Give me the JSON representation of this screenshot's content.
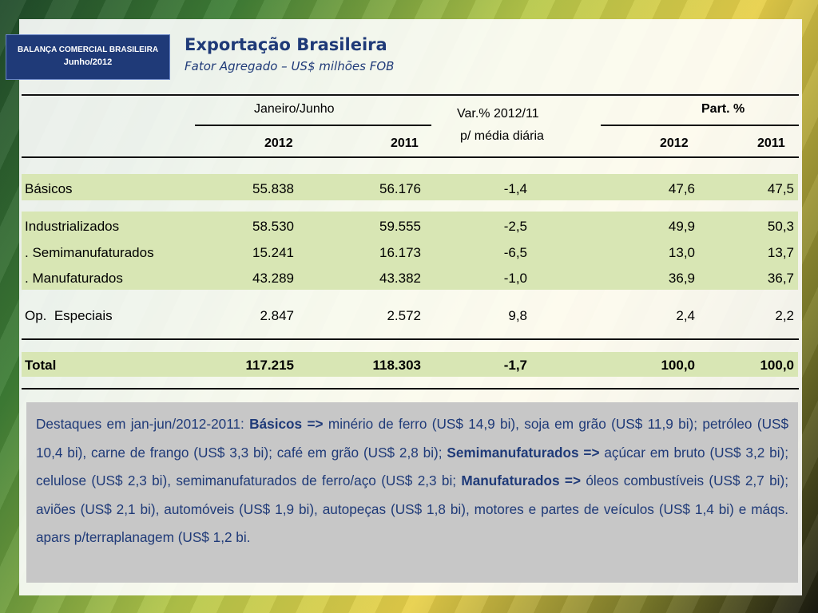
{
  "badge": {
    "line1": "BALANÇA COMERCIAL BRASILEIRA",
    "line2": "Junho/2012"
  },
  "title": "Exportação Brasileira",
  "subtitle": "Fator Agregado – US$ milhões FOB",
  "table": {
    "group_period": "Janeiro/Junho",
    "group_var_line1": "Var.% 2012/11",
    "group_var_line2": "p/ média diária",
    "group_part": "Part. %",
    "year_2012": "2012",
    "year_2011": "2011",
    "part_2012": "2012",
    "part_2011": "2011",
    "rows": [
      {
        "label": "Básicos",
        "v2012": "55.838",
        "v2011": "56.176",
        "var": "-1,4",
        "p2012": "47,6",
        "p2011": "47,5"
      },
      {
        "label": "Industrializados",
        "v2012": "58.530",
        "v2011": "59.555",
        "var": "-2,5",
        "p2012": "49,9",
        "p2011": "50,3"
      },
      {
        "label": ". Semimanufaturados",
        "v2012": "15.241",
        "v2011": "16.173",
        "var": "-6,5",
        "p2012": "13,0",
        "p2011": "13,7"
      },
      {
        "label": ". Manufaturados",
        "v2012": "43.289",
        "v2011": "43.382",
        "var": "-1,0",
        "p2012": "36,9",
        "p2011": "36,7"
      },
      {
        "label": "Op.  Especiais",
        "v2012": "2.847",
        "v2011": "2.572",
        "var": "9,8",
        "p2012": "2,4",
        "p2011": "2,2"
      },
      {
        "label": "Total",
        "v2012": "117.215",
        "v2011": "118.303",
        "var": "-1,7",
        "p2012": "100,0",
        "p2011": "100,0"
      }
    ]
  },
  "notes": {
    "intro": "Destaques em jan-jun/2012-2011: ",
    "basicos_label": "Básicos =>",
    "basicos_text": " minério de ferro (US$ 14,9 bi), soja em grão (US$ 11,9 bi); petróleo (US$ 10,4 bi), carne de frango (US$ 3,3 bi); café em grão (US$ 2,8 bi); ",
    "semi_label": "Semimanufaturados =>",
    "semi_text": " açúcar em bruto (US$ 3,2 bi); celulose (US$ 2,3 bi), semimanufaturados de ferro/aço (US$ 2,3 bi; ",
    "manuf_label": "Manufaturados =>",
    "manuf_text": " óleos combustíveis (US$ 2,7 bi); aviões (US$ 2,1 bi), automóveis (US$ 1,9 bi), autopeças (US$ 1,8 bi), motores e partes de veículos (US$ 1,4 bi) e máqs. apars p/terraplanagem (US$ 1,2 bi."
  }
}
